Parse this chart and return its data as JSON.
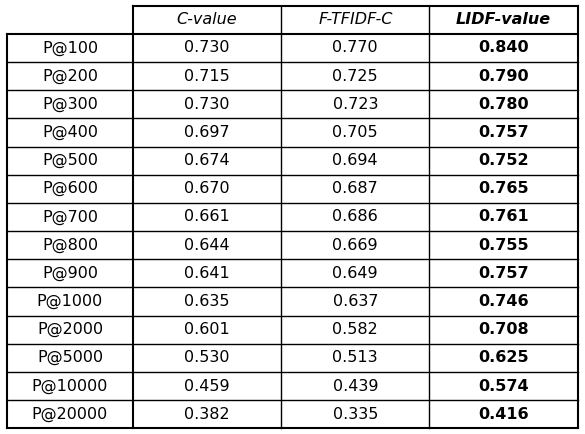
{
  "col_headers": [
    "C-value",
    "F-TFIDF-C",
    "LIDF-value"
  ],
  "row_labels": [
    "P@100",
    "P@200",
    "P@300",
    "P@400",
    "P@500",
    "P@600",
    "P@700",
    "P@800",
    "P@900",
    "P@1000",
    "P@2000",
    "P@5000",
    "P@10000",
    "P@20000"
  ],
  "col1": [
    "0.730",
    "0.715",
    "0.730",
    "0.697",
    "0.674",
    "0.670",
    "0.661",
    "0.644",
    "0.641",
    "0.635",
    "0.601",
    "0.530",
    "0.459",
    "0.382"
  ],
  "col2": [
    "0.770",
    "0.725",
    "0.723",
    "0.705",
    "0.694",
    "0.687",
    "0.686",
    "0.669",
    "0.649",
    "0.637",
    "0.582",
    "0.513",
    "0.439",
    "0.335"
  ],
  "col3": [
    "0.840",
    "0.790",
    "0.780",
    "0.757",
    "0.752",
    "0.765",
    "0.761",
    "0.755",
    "0.757",
    "0.746",
    "0.708",
    "0.625",
    "0.574",
    "0.416"
  ],
  "figsize": [
    5.85,
    4.34
  ],
  "dpi": 100,
  "font_size": 11.5,
  "header_font_size": 11.5
}
